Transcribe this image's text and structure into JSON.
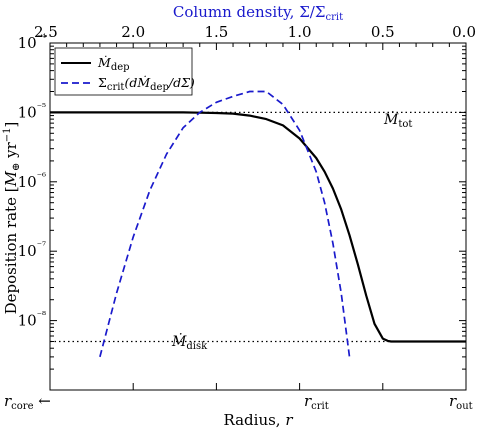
{
  "chart_data": {
    "type": "line",
    "xlabel": "Radius, r",
    "ylabel": "Deposition rate [M⊕ yr⁻¹]",
    "top_axis": {
      "title": "Column density, Σ/Σcrit",
      "title_color": "#1a1acc",
      "ticks": [
        2.5,
        2.0,
        1.5,
        1.0,
        0.5,
        0.0
      ],
      "tick_labels": [
        "2.5",
        "2.0",
        "1.5",
        "1.0",
        "0.5",
        "0.0"
      ]
    },
    "x_ticks": [
      "r_core ←",
      "r_crit",
      "r_out"
    ],
    "y_scale": "log",
    "ylim": [
      1e-09,
      0.0001
    ],
    "y_ticks": [
      1e-08,
      1e-07,
      1e-06,
      1e-05,
      0.0001
    ],
    "y_tick_labels": [
      "10⁻⁸",
      "10⁻⁷",
      "10⁻⁶",
      "10⁻⁵",
      "10⁻⁴"
    ],
    "x_by_sigma": [
      2.5,
      2.4,
      2.3,
      2.2,
      2.1,
      2.0,
      1.9,
      1.8,
      1.7,
      1.6,
      1.5,
      1.4,
      1.3,
      1.2,
      1.1,
      1.0,
      0.9,
      0.85,
      0.8,
      0.75,
      0.7,
      0.65,
      0.6,
      0.55,
      0.5,
      0.47,
      0.45,
      0.42,
      0.4,
      0.38,
      0.35,
      0.3,
      0.2,
      0.1,
      0.0
    ],
    "series": [
      {
        "name": "Ṁdep",
        "color": "#000000",
        "style": "solid",
        "values": [
          1e-05,
          1e-05,
          1e-05,
          1e-05,
          1e-05,
          1e-05,
          1e-05,
          1e-05,
          1e-05,
          9.9e-06,
          9.8e-06,
          9.6e-06,
          9e-06,
          8e-06,
          6.5e-06,
          4.2e-06,
          2.2e-06,
          1.4e-06,
          8e-07,
          4e-07,
          1.7e-07,
          6.5e-08,
          2.3e-08,
          9e-09,
          5.5e-09,
          5.1e-09,
          5e-09,
          5e-09,
          5e-09,
          5e-09,
          5e-09,
          5e-09,
          5e-09,
          5e-09,
          5e-09
        ]
      },
      {
        "name": "Σcrit(dṀdep/dΣ)",
        "color": "#1a1acc",
        "style": "dashed",
        "values": [
          null,
          null,
          null,
          3e-09,
          2.5e-08,
          1.6e-07,
          7.5e-07,
          2.5e-06,
          6e-06,
          1e-05,
          1.4e-05,
          1.7e-05,
          2e-05,
          2e-05,
          1.3e-05,
          5.5e-06,
          1.4e-06,
          5e-07,
          1.3e-07,
          2.5e-08,
          3e-09,
          null,
          null,
          null,
          null,
          null,
          null,
          null,
          null,
          null,
          null,
          null,
          null,
          null,
          null
        ]
      }
    ],
    "reference_lines": [
      {
        "label": "Ṁtot",
        "value": 1e-05
      },
      {
        "label": "Ṁdisk",
        "value": 5e-09
      }
    ],
    "legend_position": "upper left"
  },
  "labels": {
    "xlabel_text": "Radius, ",
    "xlabel_var": "r",
    "ylabel_text": "Deposition rate [",
    "ylabel_m": "M",
    "ylabel_sub": "⊕",
    "ylabel_unit": " yr",
    "ylabel_sup": "−1",
    "ylabel_close": "]",
    "top_title_main": "Column density, Σ/Σ",
    "top_title_sub": "crit",
    "x_tick_core_var": "r",
    "x_tick_core_sub": "core",
    "x_tick_core_arrow": " ←",
    "x_tick_crit_var": "r",
    "x_tick_crit_sub": "crit",
    "x_tick_out_var": "r",
    "x_tick_out_sub": "out",
    "legend_dep": "Ṁ",
    "legend_dep_sub": "dep",
    "legend_sigma_a": "Σ",
    "legend_sigma_sub": "crit",
    "legend_sigma_b": "(dṀ",
    "legend_sigma_sub2": "dep",
    "legend_sigma_c": "/dΣ)",
    "annot_tot": "Ṁ",
    "annot_tot_sub": "tot",
    "annot_disk": "Ṁ",
    "annot_disk_sub": "disk"
  }
}
